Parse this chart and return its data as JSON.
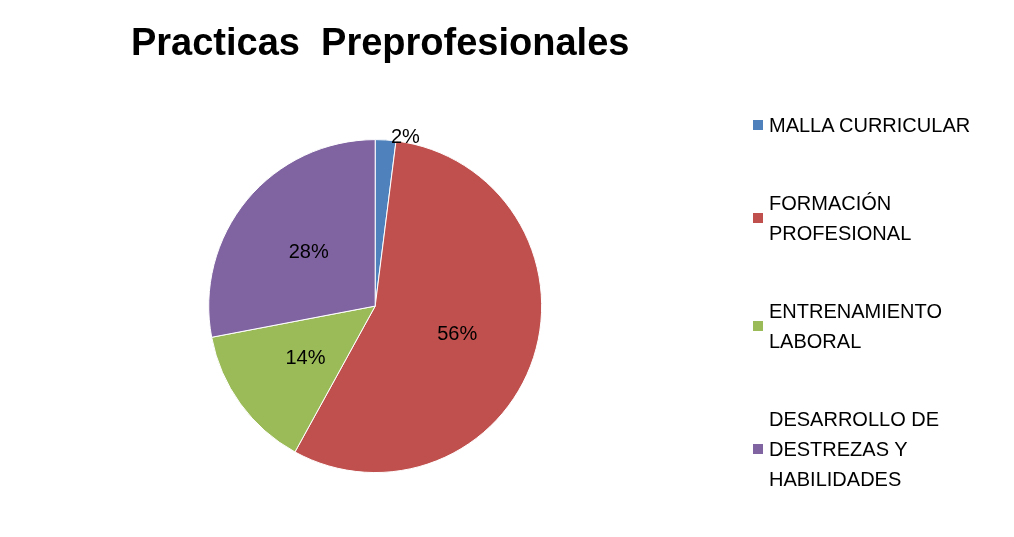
{
  "chart_data": {
    "type": "pie",
    "title": "Practicas  Preprofesionales",
    "categories": [
      "MALLA CURRICULAR",
      "FORMACIÓN PROFESIONAL",
      "ENTRENAMIENTO LABORAL",
      "DESARROLLO DE DESTREZAS Y HABILIDADES"
    ],
    "values": [
      2,
      56,
      14,
      28
    ],
    "value_labels": [
      "2%",
      "56%",
      "14%",
      "28%"
    ],
    "colors": [
      "#4f81bd",
      "#c0504d",
      "#9bbb59",
      "#8064a2"
    ],
    "legend": "right"
  }
}
